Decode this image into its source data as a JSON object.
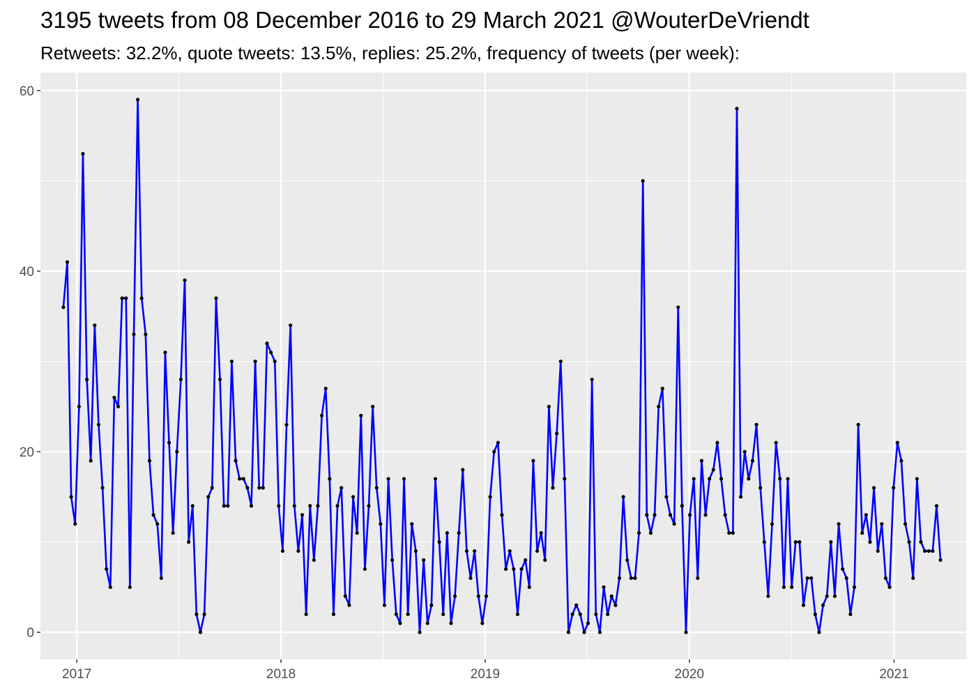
{
  "chart_data": {
    "type": "line",
    "title": "3195 tweets from 08 December 2016 to 29 March 2021 @WouterDeVriendt",
    "subtitle": "Retweets: 32.2%, quote tweets: 13.5%, replies: 25.2%, frequency of tweets (per week):",
    "xlabel": "",
    "ylabel": "",
    "x_start": "2016-12-08",
    "x_step_days": 7,
    "xlim": [
      "2016-10-28",
      "2021-05-10"
    ],
    "ylim": [
      -3,
      62
    ],
    "x_ticks": [
      {
        "label": "2017",
        "date": "2017-01-01"
      },
      {
        "label": "2018",
        "date": "2018-01-01"
      },
      {
        "label": "2019",
        "date": "2019-01-01"
      },
      {
        "label": "2020",
        "date": "2020-01-01"
      },
      {
        "label": "2021",
        "date": "2021-01-01"
      }
    ],
    "y_ticks": [
      0,
      20,
      40,
      60
    ],
    "grid": true,
    "legend": "none",
    "colors": {
      "line": "#0000ff",
      "point": "#000000",
      "panel": "#ebebeb",
      "grid": "#ffffff"
    },
    "series": [
      {
        "values": [
          36,
          41,
          15,
          12,
          25,
          53,
          28,
          19,
          34,
          23,
          16,
          7,
          5,
          26,
          25,
          37,
          37,
          5,
          33,
          59,
          37,
          33,
          19,
          13,
          12,
          6,
          31,
          21,
          11,
          20,
          28,
          39,
          10,
          14,
          2,
          0,
          2,
          15,
          16,
          37,
          28,
          14,
          14,
          30,
          19,
          17,
          17,
          16,
          14,
          30,
          16,
          16,
          32,
          31,
          30,
          14,
          9,
          23,
          34,
          14,
          9,
          13,
          2,
          14,
          8,
          14,
          24,
          27,
          17,
          2,
          14,
          16,
          4,
          3,
          15,
          11,
          24,
          7,
          14,
          25,
          16,
          12,
          3,
          17,
          8,
          2,
          1,
          17,
          2,
          12,
          9,
          0,
          8,
          1,
          3,
          17,
          10,
          2,
          11,
          1,
          4,
          11,
          18,
          9,
          6,
          9,
          4,
          1,
          4,
          15,
          20,
          21,
          13,
          7,
          9,
          7,
          2,
          7,
          8,
          5,
          19,
          9,
          11,
          8,
          25,
          16,
          22,
          30,
          17,
          0,
          2,
          3,
          2,
          0,
          1,
          28,
          2,
          0,
          5,
          2,
          4,
          3,
          6,
          15,
          8,
          6,
          6,
          11,
          50,
          13,
          11,
          13,
          25,
          27,
          15,
          13,
          12,
          36,
          14,
          0,
          13,
          17,
          6,
          19,
          13,
          17,
          18,
          21,
          17,
          13,
          11,
          11,
          58,
          15,
          20,
          17,
          19,
          23,
          16,
          10,
          4,
          12,
          21,
          17,
          5,
          17,
          5,
          10,
          10,
          3,
          6,
          6,
          2,
          0,
          3,
          4,
          10,
          4,
          12,
          7,
          6,
          2,
          5,
          23,
          11,
          13,
          10,
          16,
          9,
          12,
          6,
          5,
          16,
          21,
          19,
          12,
          10,
          6,
          17,
          10,
          9,
          9,
          9,
          14,
          8
        ]
      }
    ]
  }
}
